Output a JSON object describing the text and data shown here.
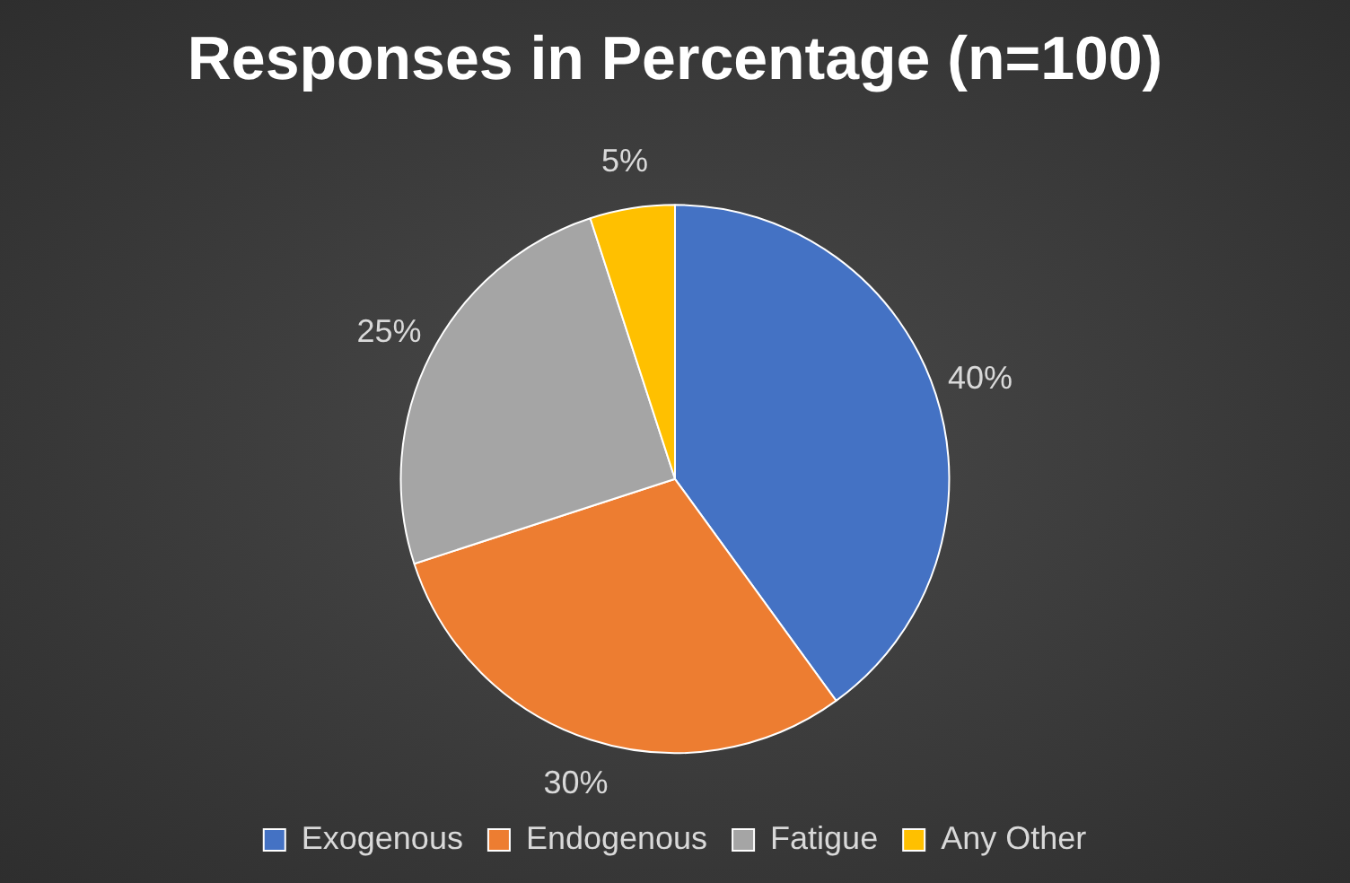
{
  "chart_data": {
    "type": "pie",
    "title": "Responses in Percentage (n=100)",
    "categories": [
      "Exogenous",
      "Endogenous",
      "Fatigue",
      "Any Other"
    ],
    "values": [
      40,
      30,
      25,
      5
    ],
    "colors": [
      "#4472c4",
      "#ed7d31",
      "#a5a5a5",
      "#ffc000"
    ],
    "value_labels": [
      "40%",
      "30%",
      "25%",
      "5%"
    ],
    "legend": "bottom"
  }
}
